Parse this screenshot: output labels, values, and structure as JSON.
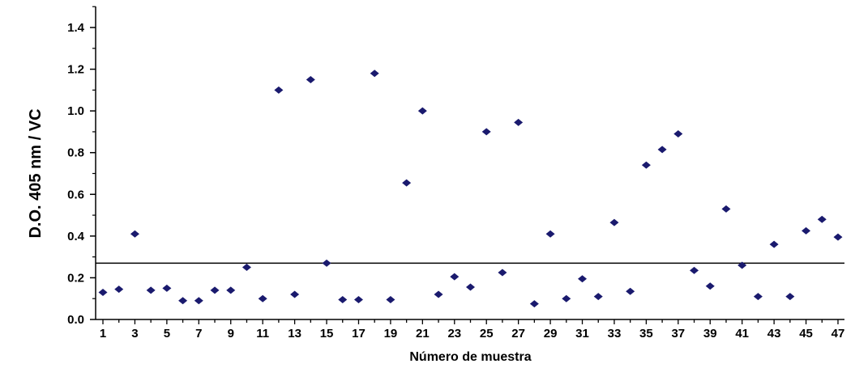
{
  "chart_data": {
    "type": "scatter",
    "title": "",
    "xlabel": "Número de muestra",
    "ylabel": "D.O. 405 nm / VC",
    "xlim": [
      1,
      47
    ],
    "ylim": [
      0,
      1.5
    ],
    "x_tick_labels": [
      1,
      3,
      5,
      7,
      9,
      11,
      13,
      15,
      17,
      19,
      21,
      23,
      25,
      27,
      29,
      31,
      33,
      35,
      37,
      39,
      41,
      43,
      45,
      47
    ],
    "y_tick_labels": [
      "0.0",
      "0.2",
      "0.4",
      "0.6",
      "0.8",
      "1.0",
      "1.2",
      "1.4"
    ],
    "y_ticks": [
      0,
      0.2,
      0.4,
      0.6,
      0.8,
      1.0,
      1.2,
      1.4
    ],
    "grid": false,
    "marker": "diamond",
    "marker_color": "#1a1a6e",
    "cutoff_line": 0.27,
    "x": [
      1,
      2,
      3,
      4,
      5,
      6,
      7,
      8,
      9,
      10,
      11,
      12,
      13,
      14,
      15,
      16,
      17,
      18,
      19,
      20,
      21,
      22,
      23,
      24,
      25,
      26,
      27,
      28,
      29,
      30,
      31,
      32,
      33,
      34,
      35,
      36,
      37,
      38,
      39,
      40,
      41,
      42,
      43,
      44,
      45,
      46,
      47
    ],
    "y": [
      0.13,
      0.145,
      0.41,
      0.14,
      0.15,
      0.09,
      0.09,
      0.14,
      0.14,
      0.25,
      0.1,
      1.1,
      0.12,
      1.15,
      0.27,
      0.095,
      0.095,
      1.18,
      0.095,
      0.655,
      1.0,
      0.12,
      0.205,
      0.155,
      0.9,
      0.225,
      0.945,
      0.075,
      0.41,
      0.1,
      0.195,
      0.11,
      0.465,
      0.135,
      0.74,
      0.815,
      0.89,
      0.235,
      0.16,
      0.53,
      0.26,
      0.11,
      0.36,
      0.11,
      0.425,
      0.48,
      0.395
    ]
  }
}
